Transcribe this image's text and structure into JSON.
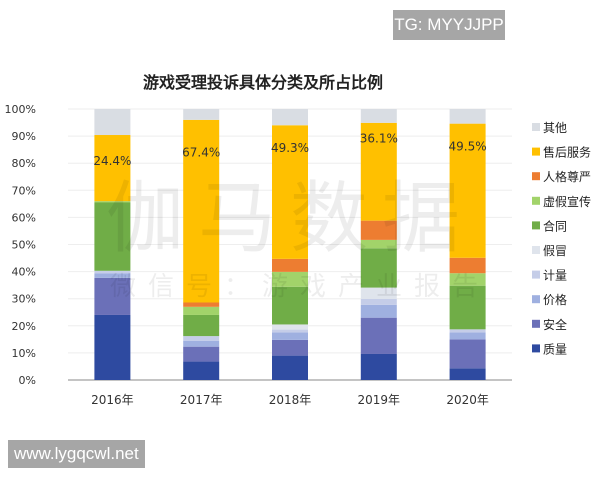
{
  "overlays": {
    "tg": "TG: MYYJJPP",
    "site": "www.lygqcwl.net"
  },
  "watermark": {
    "main": "伽马数据",
    "sub": "微信号：游戏产业报告"
  },
  "chart_data": {
    "type": "bar",
    "stacked": true,
    "title": "游戏受理投诉具体分类及所占比例",
    "xlabel": "",
    "ylabel": "",
    "ylim": [
      0,
      100
    ],
    "yticks": [
      "0%",
      "10%",
      "20%",
      "30%",
      "40%",
      "50%",
      "60%",
      "70%",
      "80%",
      "90%",
      "100%"
    ],
    "categories": [
      "2016年",
      "2017年",
      "2018年",
      "2019年",
      "2020年"
    ],
    "legend_position": "right",
    "series": [
      {
        "name": "质量",
        "color": "#2e4aa0",
        "values": [
          24.0,
          6.8,
          9.0,
          9.6,
          4.3
        ]
      },
      {
        "name": "安全",
        "color": "#6b70b8",
        "values": [
          13.7,
          5.5,
          5.8,
          13.4,
          10.7
        ]
      },
      {
        "name": "价格",
        "color": "#9fb0e0",
        "values": [
          1.7,
          2.2,
          2.8,
          4.7,
          2.6
        ]
      },
      {
        "name": "计量",
        "color": "#c5cde8",
        "values": [
          0.9,
          1.7,
          1.0,
          2.2,
          1.1
        ]
      },
      {
        "name": "假冒",
        "color": "#dfe4ec",
        "values": [
          0.0,
          0.0,
          1.9,
          4.2,
          0.0
        ]
      },
      {
        "name": "合同",
        "color": "#70ad47",
        "values": [
          25.2,
          7.8,
          13.9,
          14.5,
          16.1
        ]
      },
      {
        "name": "虚假宣传",
        "color": "#a2d36a",
        "values": [
          0.5,
          3.0,
          5.5,
          3.1,
          4.6
        ]
      },
      {
        "name": "人格尊严",
        "color": "#ed7d31",
        "values": [
          0.0,
          1.6,
          4.8,
          7.1,
          5.7
        ]
      },
      {
        "name": "售后服务",
        "color": "#ffc000",
        "values": [
          24.4,
          67.4,
          49.3,
          36.1,
          49.5
        ]
      },
      {
        "name": "其他",
        "color": "#d9dde3",
        "values": [
          9.6,
          4.0,
          6.0,
          5.1,
          5.4
        ]
      }
    ],
    "data_labels": [
      {
        "series": "售后服务",
        "category": "2016年",
        "text": "24.4%"
      },
      {
        "series": "售后服务",
        "category": "2017年",
        "text": "67.4%"
      },
      {
        "series": "售后服务",
        "category": "2018年",
        "text": "49.3%"
      },
      {
        "series": "售后服务",
        "category": "2019年",
        "text": "36.1%"
      },
      {
        "series": "售后服务",
        "category": "2020年",
        "text": "49.5%"
      }
    ]
  }
}
